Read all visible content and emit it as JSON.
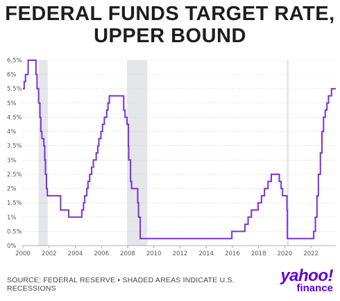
{
  "title_line1": "FEDERAL FUNDS TARGET RATE,",
  "title_line2": "UPPER BOUND",
  "source": "SOURCE: FEDERAL RESERVE • SHADED AREAS INDICATE U.S. RECESSIONS",
  "logo": {
    "line1": "yahoo!",
    "line2": "finance"
  },
  "colors": {
    "line": "#7b2fd4",
    "recession": "#e4e6ea",
    "grid": "#c8c8c8",
    "logo": "#6001d2"
  },
  "chart_data": {
    "type": "line",
    "title": "FEDERAL FUNDS TARGET RATE, UPPER BOUND",
    "xlabel": "",
    "ylabel": "",
    "xlim": [
      2000,
      2023.9
    ],
    "ylim": [
      0,
      6.5
    ],
    "x_ticks": [
      2000,
      2002,
      2004,
      2006,
      2008,
      2010,
      2012,
      2014,
      2016,
      2018,
      2020,
      2022
    ],
    "x_tick_labels": [
      "2000",
      "2002",
      "2004",
      "2006",
      "2008",
      "2010",
      "2012",
      "2014",
      "2016",
      "2018",
      "2020",
      "2022"
    ],
    "y_ticks": [
      0,
      0.5,
      1,
      1.5,
      2,
      2.5,
      3,
      3.5,
      4,
      4.5,
      5,
      5.5,
      6,
      6.5
    ],
    "y_tick_labels": [
      "0%",
      "0.5%",
      "1%",
      "1.5%",
      "2%",
      "2.5%",
      "3%",
      "3.5%",
      "4%",
      "4.5%",
      "5%",
      "5.5%",
      "6%",
      "6.5%"
    ],
    "grid": true,
    "recessions": [
      [
        2001.2,
        2001.9
      ],
      [
        2007.95,
        2009.5
      ],
      [
        2020.15,
        2020.3
      ]
    ],
    "series": [
      {
        "step": true,
        "points": [
          [
            2000.0,
            5.5
          ],
          [
            2000.1,
            5.75
          ],
          [
            2000.2,
            6.0
          ],
          [
            2000.4,
            6.5
          ],
          [
            2001.0,
            6.0
          ],
          [
            2001.08,
            5.5
          ],
          [
            2001.2,
            5.0
          ],
          [
            2001.3,
            4.5
          ],
          [
            2001.37,
            4.0
          ],
          [
            2001.45,
            3.75
          ],
          [
            2001.6,
            3.5
          ],
          [
            2001.67,
            3.0
          ],
          [
            2001.72,
            2.5
          ],
          [
            2001.8,
            2.0
          ],
          [
            2001.87,
            1.75
          ],
          [
            2002.88,
            1.25
          ],
          [
            2003.5,
            1.0
          ],
          [
            2004.5,
            1.25
          ],
          [
            2004.63,
            1.5
          ],
          [
            2004.72,
            1.75
          ],
          [
            2004.88,
            2.0
          ],
          [
            2004.97,
            2.25
          ],
          [
            2005.1,
            2.5
          ],
          [
            2005.25,
            2.75
          ],
          [
            2005.38,
            3.0
          ],
          [
            2005.6,
            3.25
          ],
          [
            2005.72,
            3.5
          ],
          [
            2005.8,
            3.75
          ],
          [
            2005.96,
            4.0
          ],
          [
            2006.08,
            4.25
          ],
          [
            2006.22,
            4.5
          ],
          [
            2006.4,
            4.75
          ],
          [
            2006.5,
            5.0
          ],
          [
            2006.6,
            5.25
          ],
          [
            2007.7,
            4.75
          ],
          [
            2007.8,
            4.5
          ],
          [
            2007.95,
            4.25
          ],
          [
            2008.06,
            3.5
          ],
          [
            2008.08,
            3.0
          ],
          [
            2008.22,
            2.25
          ],
          [
            2008.3,
            2.0
          ],
          [
            2008.77,
            1.5
          ],
          [
            2008.83,
            1.0
          ],
          [
            2008.96,
            0.25
          ],
          [
            2015.96,
            0.5
          ],
          [
            2016.96,
            0.75
          ],
          [
            2017.2,
            1.0
          ],
          [
            2017.45,
            1.25
          ],
          [
            2017.96,
            1.5
          ],
          [
            2018.22,
            1.75
          ],
          [
            2018.45,
            2.0
          ],
          [
            2018.72,
            2.25
          ],
          [
            2018.97,
            2.5
          ],
          [
            2019.58,
            2.25
          ],
          [
            2019.72,
            2.0
          ],
          [
            2019.83,
            1.75
          ],
          [
            2020.17,
            1.25
          ],
          [
            2020.2,
            0.25
          ],
          [
            2022.21,
            0.5
          ],
          [
            2022.34,
            1.0
          ],
          [
            2022.46,
            1.75
          ],
          [
            2022.57,
            2.5
          ],
          [
            2022.72,
            3.25
          ],
          [
            2022.84,
            4.0
          ],
          [
            2022.96,
            4.5
          ],
          [
            2023.09,
            4.75
          ],
          [
            2023.22,
            5.0
          ],
          [
            2023.34,
            5.25
          ],
          [
            2023.57,
            5.5
          ],
          [
            2023.9,
            5.5
          ]
        ]
      }
    ]
  }
}
